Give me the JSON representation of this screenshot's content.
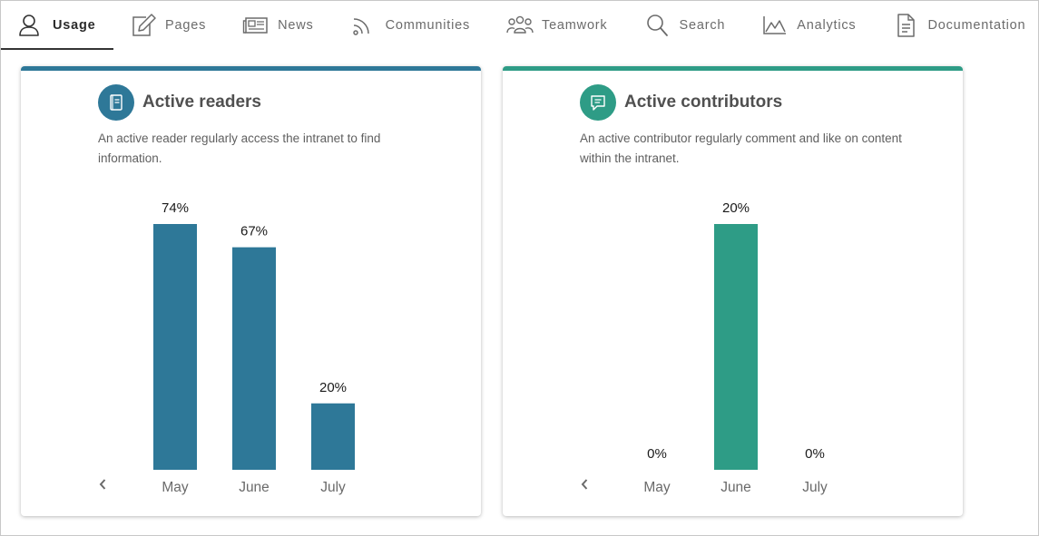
{
  "tabs": [
    {
      "label": "Usage",
      "icon": "user-icon",
      "active": true
    },
    {
      "label": "Pages",
      "icon": "edit-icon",
      "active": false
    },
    {
      "label": "News",
      "icon": "newspaper-icon",
      "active": false
    },
    {
      "label": "Communities",
      "icon": "rss-icon",
      "active": false
    },
    {
      "label": "Teamwork",
      "icon": "group-icon",
      "active": false
    },
    {
      "label": "Search",
      "icon": "search-icon",
      "active": false
    },
    {
      "label": "Analytics",
      "icon": "chart-icon",
      "active": false
    },
    {
      "label": "Documentation",
      "icon": "document-icon",
      "active": false
    }
  ],
  "colors": {
    "readers": "#2e7898",
    "contributors": "#2e9c86"
  },
  "cards": {
    "readers": {
      "title": "Active readers",
      "description": "An active reader regularly access the intranet to find information.",
      "icon": "book-icon"
    },
    "contributors": {
      "title": "Active contributors",
      "description": "An active contributor regularly comment and like on content within the intranet.",
      "icon": "comment-icon"
    }
  },
  "chart_data": [
    {
      "type": "bar",
      "title": "Active readers",
      "categories": [
        "May",
        "June",
        "July"
      ],
      "values": [
        74,
        67,
        20
      ],
      "labels": [
        "74%",
        "67%",
        "20%"
      ],
      "ylim": [
        0,
        74
      ],
      "grid": false
    },
    {
      "type": "bar",
      "title": "Active contributors",
      "categories": [
        "May",
        "June",
        "July"
      ],
      "values": [
        0,
        20,
        0
      ],
      "labels": [
        "0%",
        "20%",
        "0%"
      ],
      "ylim": [
        0,
        20
      ],
      "grid": false
    }
  ]
}
